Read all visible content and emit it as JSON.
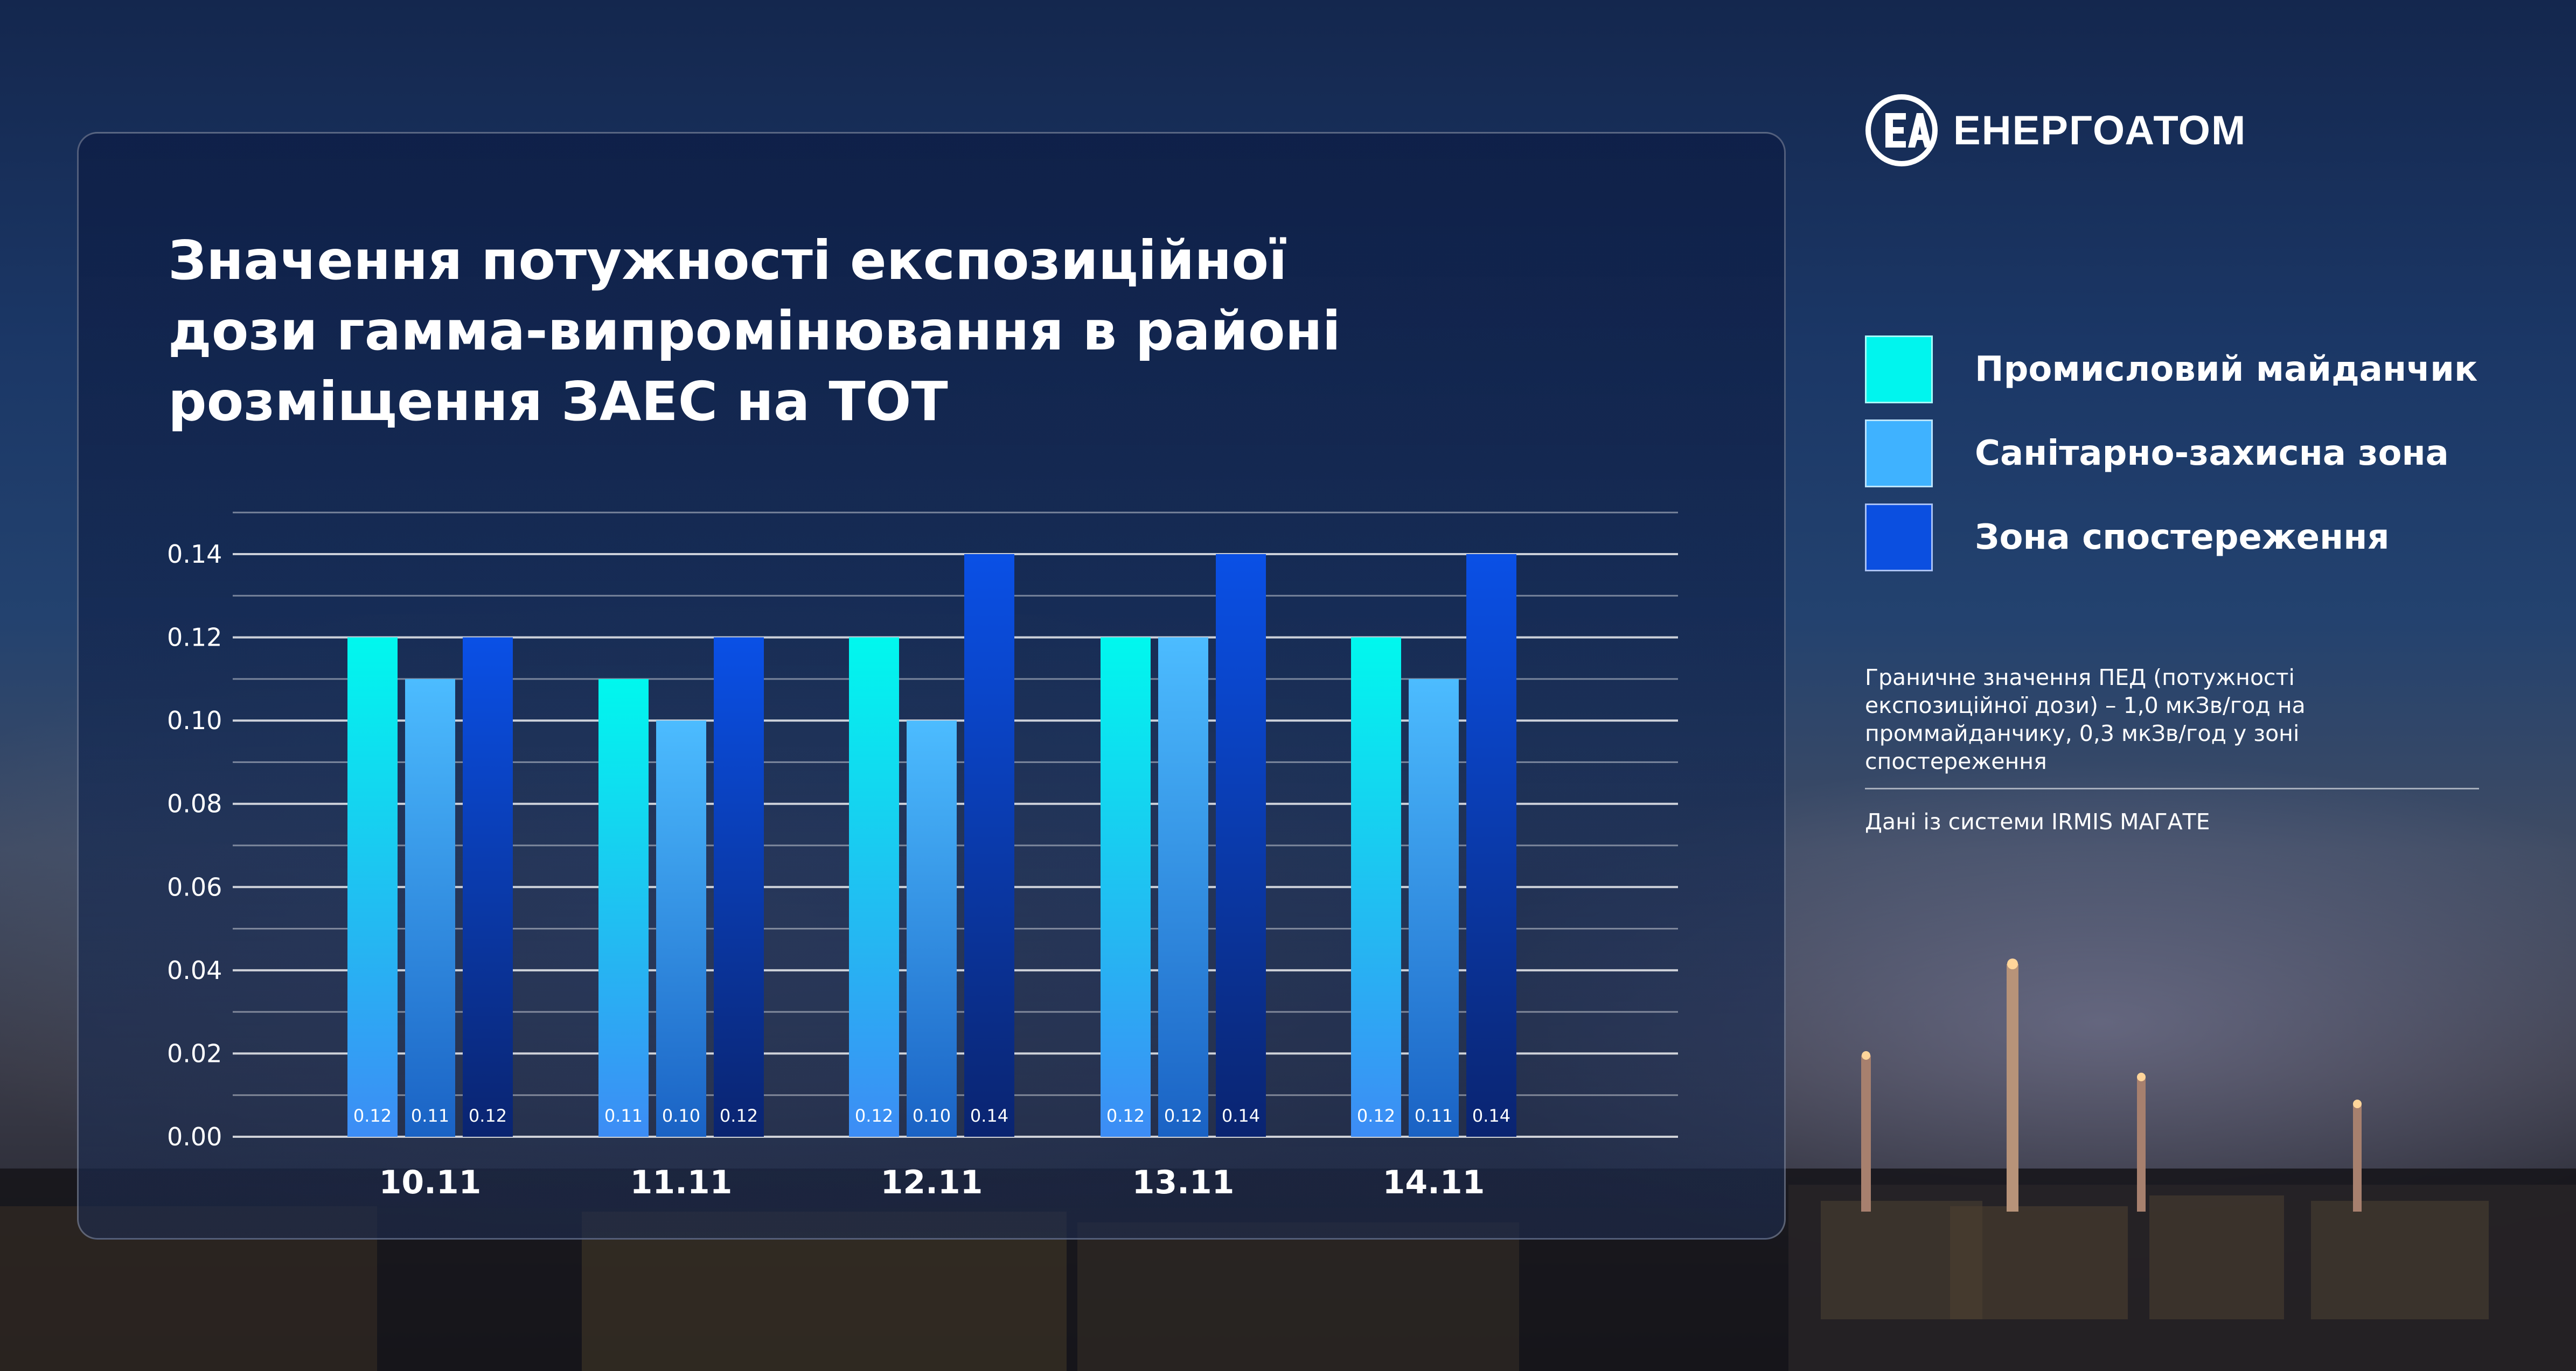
{
  "title_lines": [
    "Значення потужності експозиційної",
    "дози гамма-випромінювання в районі",
    "розміщення ЗАЕС на ТОТ"
  ],
  "brand": {
    "name": "ЕНЕРГОАТОМ",
    "logo_icon": "energoatom-logo-icon"
  },
  "legend": [
    {
      "label": "Промисловий майданчик",
      "color": "#00f5ee"
    },
    {
      "label": "Санітарно-захисна зона",
      "color": "#3fb2ff"
    },
    {
      "label": "Зона спостереження",
      "color": "#0b4fe0"
    }
  ],
  "note": "Граничне значення ПЕД (потужності експозиційної дози) – 1,0 мкЗв/год на проммайданчику, 0,3 мкЗв/год у зоні спостереження",
  "source": "Дані із системи IRMIS МАГАТЕ",
  "chart_data": {
    "type": "bar",
    "categories": [
      "10.11",
      "11.11",
      "12.11",
      "13.11",
      "14.11"
    ],
    "series": [
      {
        "name": "Промисловий майданчик",
        "values": [
          0.12,
          0.11,
          0.12,
          0.12,
          0.12
        ],
        "labels": [
          "0.12",
          "0.11",
          "0.12",
          "0.12",
          "0.12"
        ]
      },
      {
        "name": "Санітарно-захисна зона",
        "values": [
          0.11,
          0.1,
          0.1,
          0.12,
          0.11
        ],
        "labels": [
          "0.11",
          "0.10",
          "0.10",
          "0.12",
          "0.11"
        ]
      },
      {
        "name": "Зона спостереження",
        "values": [
          0.12,
          0.12,
          0.14,
          0.14,
          0.14
        ],
        "labels": [
          "0.12",
          "0.12",
          "0.14",
          "0.14",
          "0.14"
        ]
      }
    ],
    "yticks": [
      "0.00",
      "0.02",
      "0.04",
      "0.06",
      "0.08",
      "0.10",
      "0.12",
      "0.14"
    ],
    "ylim": [
      0,
      0.14
    ],
    "grid": true,
    "legend_position": "right",
    "colors": {
      "s0_top": "#00f8ee",
      "s0_bottom": "#3d8cf5",
      "s1_top": "#4cbcff",
      "s1_bottom": "#1a62c4",
      "s2_top": "#0a50e6",
      "s2_bottom": "#0a2470"
    }
  }
}
